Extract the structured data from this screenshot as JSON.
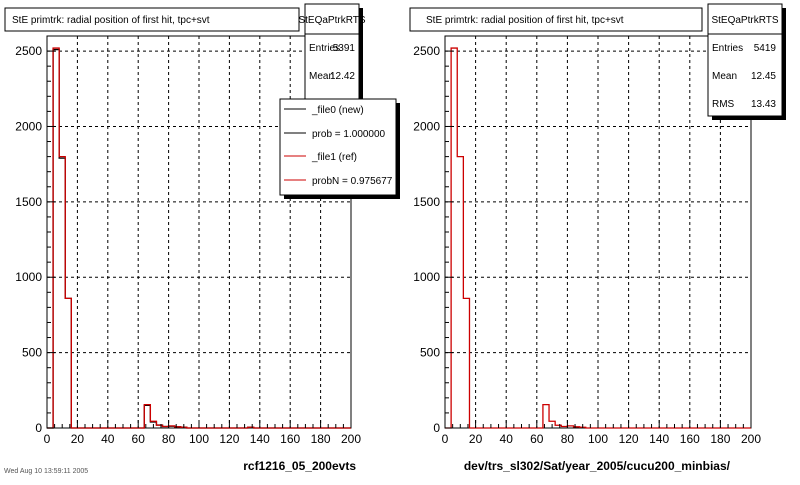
{
  "page": {
    "footer_text": "Wed Aug 10 13:59:11 2005"
  },
  "colors": {
    "new": "#000000",
    "ref": "#cc0000",
    "grid": "#000000",
    "shadow": "#000000"
  },
  "chart_data": [
    {
      "type": "bar",
      "title": "StE primtrk: radial position of first hit, tpc+svt",
      "xlabel": "rcf1216_05_200evts",
      "ylabel": "",
      "xlim": [
        0,
        200
      ],
      "ylim": [
        0,
        2600
      ],
      "xticks": [
        "0",
        "20",
        "40",
        "60",
        "80",
        "100",
        "120",
        "140",
        "160",
        "180",
        "200"
      ],
      "yticks": [
        "0",
        "500",
        "1000",
        "1500",
        "2000",
        "2500"
      ],
      "grid": true,
      "bin_width": 4,
      "stats": {
        "name": "StEQaPtrkRTS",
        "rows": [
          {
            "label": "Entries",
            "value": "5391"
          },
          {
            "label": "Mean",
            "value": "12.42"
          }
        ]
      },
      "legend": {
        "placement": "top-right",
        "entries": [
          {
            "text": "_file0 (new)",
            "color": "#000000"
          },
          {
            "text": "prob = 1.000000",
            "color": "#000000"
          },
          {
            "text": "_file1 (ref)",
            "color": "#cc0000"
          },
          {
            "text": "probN = 0.975677",
            "color": "#cc0000"
          }
        ]
      },
      "series": [
        {
          "name": "_file0 (new)",
          "color": "#000000",
          "values": [
            0,
            2510,
            1790,
            860,
            0,
            0,
            0,
            0,
            0,
            0,
            0,
            0,
            0,
            0,
            0,
            0,
            150,
            40,
            20,
            10,
            12,
            8,
            5,
            0,
            0,
            0,
            0,
            0,
            0,
            0,
            0,
            0,
            0,
            5,
            0,
            0,
            0,
            0,
            0,
            0,
            0,
            0,
            0,
            0,
            0,
            0,
            0,
            0,
            0,
            0
          ]
        },
        {
          "name": "_file1 (ref)",
          "color": "#cc0000",
          "values": [
            0,
            2520,
            1800,
            860,
            0,
            0,
            0,
            0,
            0,
            0,
            0,
            0,
            0,
            0,
            0,
            0,
            155,
            45,
            18,
            10,
            14,
            8,
            5,
            0,
            0,
            0,
            0,
            0,
            0,
            0,
            0,
            0,
            0,
            5,
            0,
            0,
            0,
            0,
            0,
            0,
            0,
            0,
            0,
            0,
            0,
            0,
            0,
            0,
            0,
            0
          ]
        }
      ]
    },
    {
      "type": "bar",
      "title": "StE primtrk: radial position of first hit, tpc+svt",
      "xlabel": "dev/trs_sl302/Sat/year_2005/cucu200_minbias/",
      "ylabel": "",
      "xlim": [
        0,
        200
      ],
      "ylim": [
        0,
        2600
      ],
      "xticks": [
        "0",
        "20",
        "40",
        "60",
        "80",
        "100",
        "120",
        "140",
        "160",
        "180",
        "200"
      ],
      "yticks": [
        "0",
        "500",
        "1000",
        "1500",
        "2000",
        "2500"
      ],
      "grid": true,
      "bin_width": 4,
      "stats": {
        "name": "StEQaPtrkRTS",
        "rows": [
          {
            "label": "Entries",
            "value": "5419"
          },
          {
            "label": "Mean",
            "value": "12.45"
          },
          {
            "label": "RMS",
            "value": "13.43"
          }
        ]
      },
      "series": [
        {
          "name": "",
          "color": "#cc0000",
          "values": [
            0,
            2520,
            1800,
            860,
            0,
            0,
            0,
            0,
            0,
            0,
            0,
            0,
            0,
            0,
            0,
            0,
            155,
            45,
            18,
            10,
            14,
            8,
            5,
            0,
            0,
            0,
            0,
            0,
            0,
            0,
            0,
            0,
            0,
            0,
            0,
            0,
            0,
            0,
            0,
            0,
            0,
            0,
            0,
            0,
            0,
            0,
            0,
            0,
            0,
            0
          ]
        }
      ]
    }
  ]
}
